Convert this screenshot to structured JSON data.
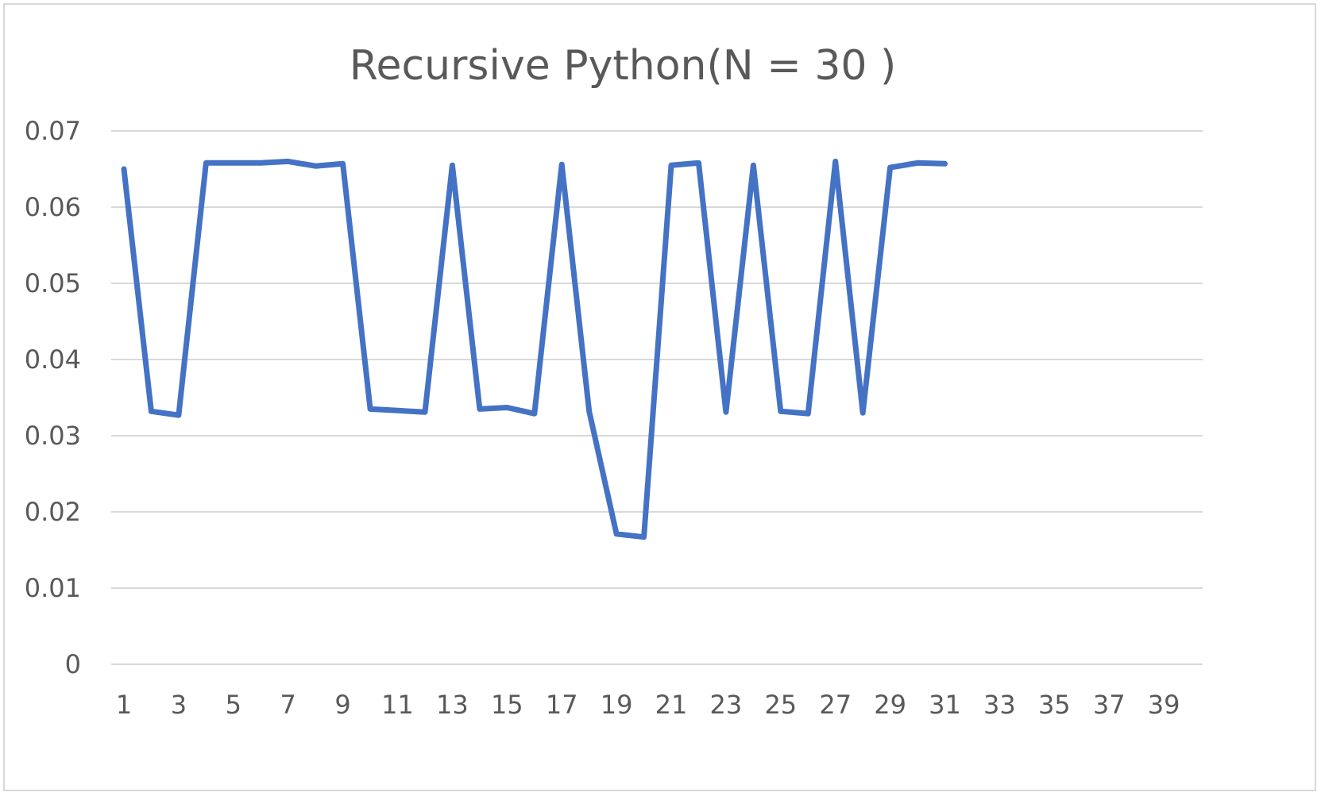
{
  "chart_data": {
    "type": "line",
    "title": "Recursive Python(N = 30 )",
    "xlabel": "",
    "ylabel": "",
    "ylim": [
      0,
      0.07
    ],
    "y_ticks": [
      "0",
      "0.01",
      "0.02",
      "0.03",
      "0.04",
      "0.05",
      "0.06",
      "0.07"
    ],
    "y_tick_values": [
      0,
      0.01,
      0.02,
      0.03,
      0.04,
      0.05,
      0.06,
      0.07
    ],
    "x_categories": [
      1,
      2,
      3,
      4,
      5,
      6,
      7,
      8,
      9,
      10,
      11,
      12,
      13,
      14,
      15,
      16,
      17,
      18,
      19,
      20,
      21,
      22,
      23,
      24,
      25,
      26,
      27,
      28,
      29,
      30,
      31,
      32,
      33,
      34,
      35,
      36,
      37,
      38,
      39,
      40
    ],
    "x_tick_labels": [
      "1",
      "3",
      "5",
      "7",
      "9",
      "11",
      "13",
      "15",
      "17",
      "19",
      "21",
      "23",
      "25",
      "27",
      "29",
      "31",
      "33",
      "35",
      "37",
      "39"
    ],
    "x_tick_values": [
      1,
      3,
      5,
      7,
      9,
      11,
      13,
      15,
      17,
      19,
      21,
      23,
      25,
      27,
      29,
      31,
      33,
      35,
      37,
      39
    ],
    "grid": true,
    "legend": "none",
    "series": [
      {
        "color": "#4472c4",
        "x": [
          1,
          2,
          3,
          4,
          5,
          6,
          7,
          8,
          9,
          10,
          11,
          12,
          13,
          14,
          15,
          16,
          17,
          18,
          19,
          20,
          21,
          22,
          23,
          24,
          25,
          26,
          27,
          28,
          29,
          30,
          31
        ],
        "values": [
          0.065,
          0.0332,
          0.0327,
          0.0658,
          0.0658,
          0.0658,
          0.066,
          0.0654,
          0.0657,
          0.0335,
          0.0333,
          0.0331,
          0.0655,
          0.0335,
          0.0337,
          0.0329,
          0.0656,
          0.0332,
          0.0171,
          0.0167,
          0.0655,
          0.0658,
          0.0331,
          0.0655,
          0.0332,
          0.0329,
          0.066,
          0.033,
          0.0652,
          0.0658,
          0.0657
        ]
      }
    ]
  }
}
